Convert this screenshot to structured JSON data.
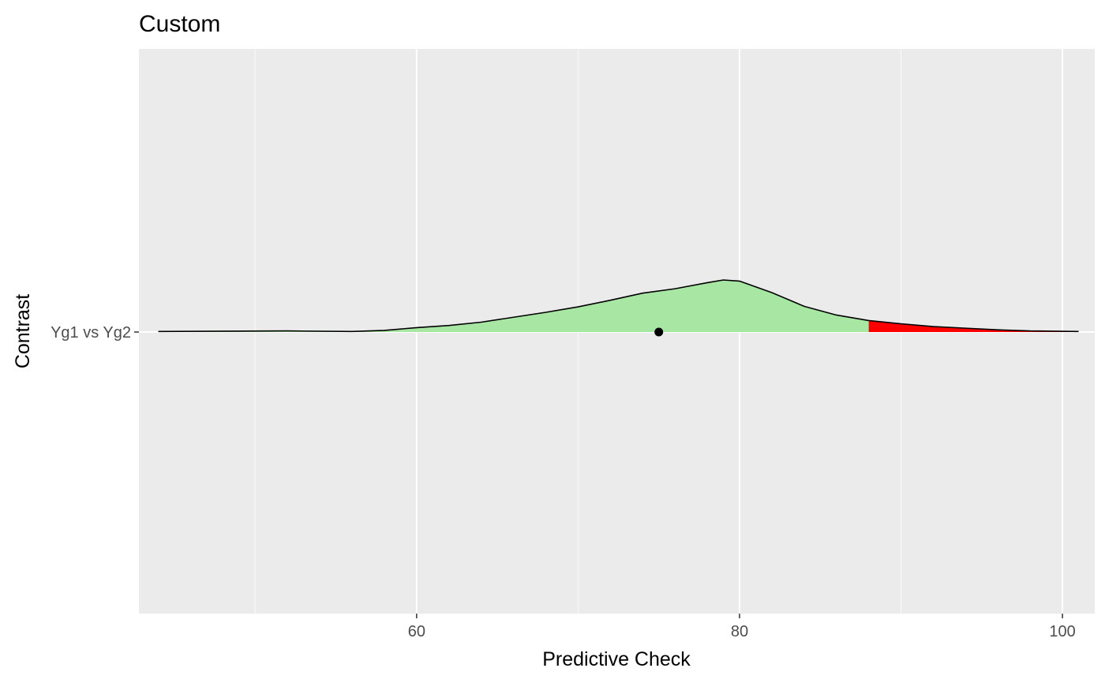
{
  "chart_data": {
    "type": "area",
    "title": "Custom",
    "xlabel": "Predictive Check",
    "ylabel": "Contrast",
    "categories": [
      "Yg1 vs Yg2"
    ],
    "xlim": [
      42.8,
      102
    ],
    "x_ticks": [
      60,
      80,
      100
    ],
    "x_tick_labels": [
      "60",
      "80",
      "100"
    ],
    "grid": true,
    "legend": "none",
    "observed_point": {
      "category": "Yg1 vs Yg2",
      "x": 75
    },
    "tail_threshold": 88,
    "colors": {
      "panel": "#ebebeb",
      "grid": "#ffffff",
      "density_fill": "#a8e6a3",
      "tail_fill": "#ff0000",
      "outline": "#000000",
      "point": "#000000"
    },
    "density": {
      "x": [
        44,
        48,
        52,
        56,
        58,
        60,
        62,
        64,
        66,
        68,
        70,
        72,
        74,
        76,
        78,
        79,
        80,
        82,
        84,
        86,
        88,
        90,
        92,
        94,
        96,
        98,
        101
      ],
      "y": [
        0.01,
        0.015,
        0.02,
        0.01,
        0.03,
        0.08,
        0.12,
        0.18,
        0.27,
        0.36,
        0.46,
        0.58,
        0.71,
        0.79,
        0.9,
        0.95,
        0.93,
        0.72,
        0.47,
        0.31,
        0.21,
        0.15,
        0.1,
        0.07,
        0.04,
        0.02,
        0.01
      ]
    }
  }
}
